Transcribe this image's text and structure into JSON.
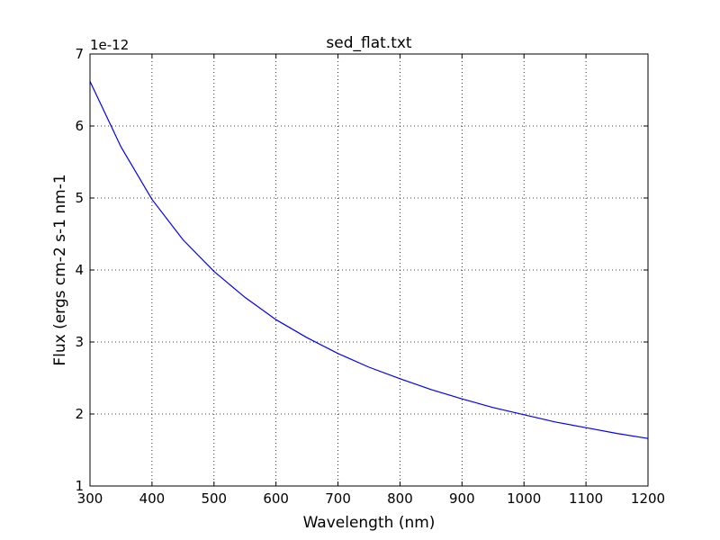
{
  "chart_data": {
    "type": "line",
    "title": "sed_flat.txt",
    "xlabel": "Wavelength (nm)",
    "ylabel": "Flux (ergs cm-2 s-1 nm-1",
    "y_offset_text": "1e-12",
    "xlim": [
      300,
      1200
    ],
    "ylim": [
      1,
      7
    ],
    "xticks": [
      "300",
      "400",
      "500",
      "600",
      "700",
      "800",
      "900",
      "1000",
      "1100",
      "1200"
    ],
    "yticks": [
      "1",
      "2",
      "3",
      "4",
      "5",
      "6",
      "7"
    ],
    "grid": true,
    "series": [
      {
        "color": "#0000ff",
        "x": [
          300,
          350,
          400,
          450,
          500,
          550,
          600,
          650,
          700,
          750,
          800,
          850,
          900,
          950,
          1000,
          1050,
          1100,
          1150,
          1200
        ],
        "y": [
          6.62,
          5.71,
          4.98,
          4.42,
          3.98,
          3.62,
          3.31,
          3.06,
          2.84,
          2.65,
          2.49,
          2.34,
          2.21,
          2.09,
          1.99,
          1.89,
          1.81,
          1.73,
          1.66
        ]
      }
    ]
  }
}
